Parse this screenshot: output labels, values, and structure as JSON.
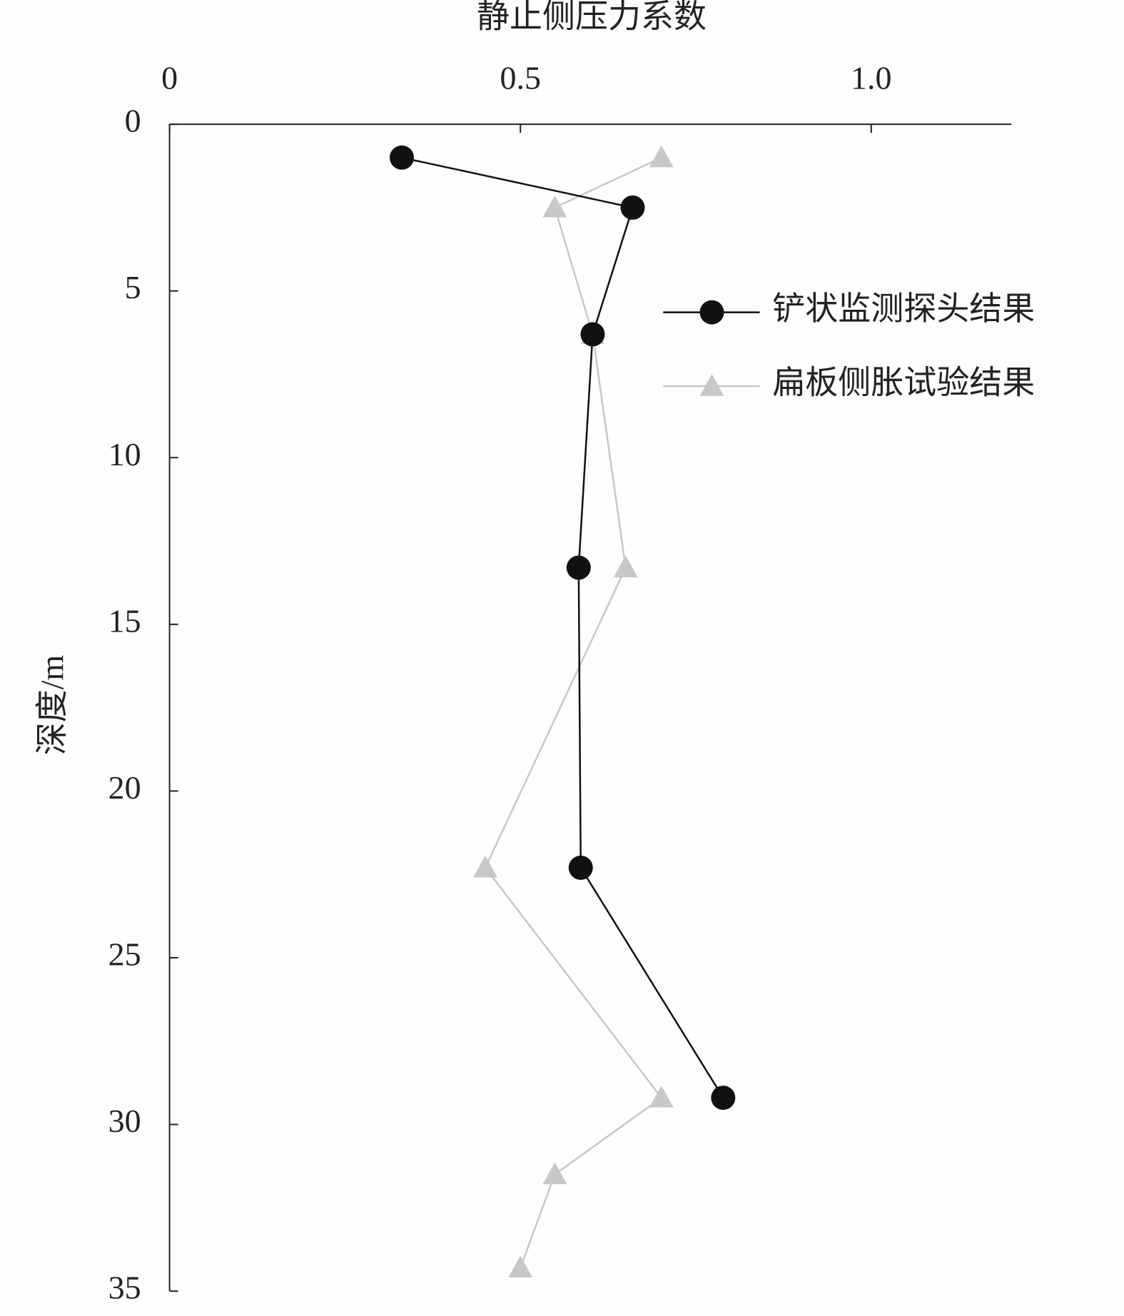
{
  "chart_data": {
    "type": "line",
    "xlabel": "静止侧压力系数",
    "ylabel": "深度/m",
    "xlim": [
      0,
      1.2
    ],
    "xticks": [
      0,
      0.5,
      {
        "value": 1,
        "label": "1.0"
      }
    ],
    "ylim": [
      0,
      35
    ],
    "yticks": [
      0,
      5,
      10,
      15,
      20,
      25,
      30,
      35
    ],
    "y_inverted": true,
    "x_axis_position": "top",
    "series": [
      {
        "name": "铲状监测探头结果",
        "color": "#111111",
        "marker": "circle",
        "x": [
          0.331,
          0.66,
          0.603,
          0.583,
          0.586,
          0.789
        ],
        "y": [
          1.0,
          2.5,
          6.3,
          13.3,
          22.3,
          29.2
        ]
      },
      {
        "name": "扁板侧胀试验结果",
        "color": "#c8c8c8",
        "marker": "triangle",
        "x": [
          0.701,
          0.549,
          0.603,
          0.65,
          0.45,
          0.701,
          0.549,
          0.5
        ],
        "y": [
          1.0,
          2.5,
          6.3,
          13.3,
          22.3,
          29.2,
          31.5,
          34.3
        ]
      }
    ]
  }
}
